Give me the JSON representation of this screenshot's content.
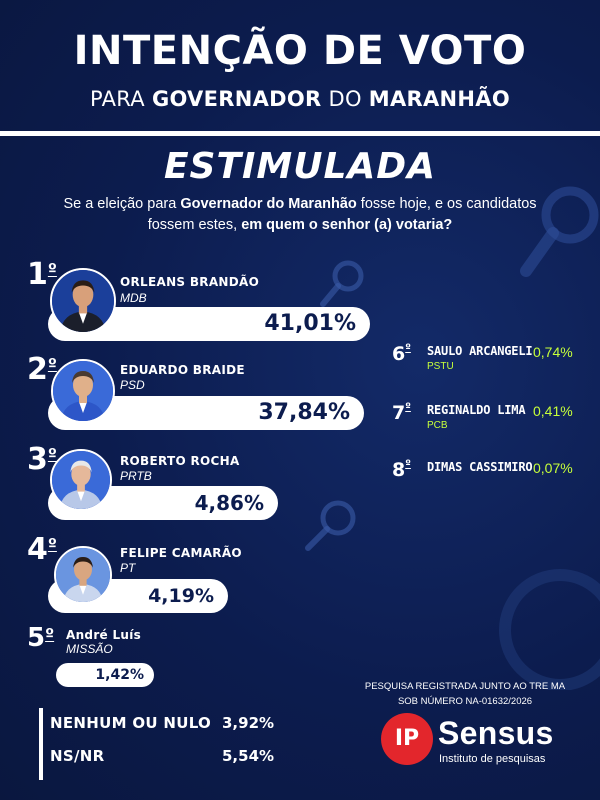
{
  "header": {
    "title": "INTENÇÃO DE VOTO",
    "subtitle_pre": "PARA ",
    "subtitle_bold1": "GOVERNADOR",
    "subtitle_mid": " DO ",
    "subtitle_bold2": "MARANHÃO"
  },
  "section": {
    "title": "ESTIMULADA",
    "question_1": "Se a eleição para ",
    "question_bold1": "Governador do Maranhão",
    "question_2": " fosse hoje, e os candidatos fossem estes, ",
    "question_bold2": "em quem o senhor (a) votaria?"
  },
  "chart_data": {
    "type": "bar",
    "title": "INTENÇÃO DE VOTO",
    "categories": [
      "ORLEANS BRANDÃO",
      "EDUARDO BRAIDE",
      "ROBERTO ROCHA",
      "FELIPE CAMARÃO",
      "André Luís",
      "SAULO ARCANGELI",
      "REGINALDO LIMA",
      "DIMAS CASSIMIRO",
      "NENHUM OU NULO",
      "NS/NR"
    ],
    "values": [
      41.01,
      37.84,
      4.86,
      4.19,
      1.42,
      0.74,
      0.41,
      0.07,
      3.92,
      5.54
    ],
    "unit": "%",
    "candidates": [
      {
        "rank": "1",
        "ord": "º",
        "name": "ORLEANS BRANDÃO",
        "party": "MDB",
        "value": 41.01,
        "label": "41,01%"
      },
      {
        "rank": "2",
        "ord": "º",
        "name": "EDUARDO BRAIDE",
        "party": "PSD",
        "value": 37.84,
        "label": "37,84%"
      },
      {
        "rank": "3",
        "ord": "º",
        "name": "ROBERTO ROCHA",
        "party": "PRTB",
        "value": 4.86,
        "label": "4,86%"
      },
      {
        "rank": "4",
        "ord": "º",
        "name": "FELIPE CAMARÃO",
        "party": "PT",
        "value": 4.19,
        "label": "4,19%"
      },
      {
        "rank": "5",
        "ord": "º",
        "name": "ANDRÉ LUÍS",
        "party": "MISSÃO",
        "value": 1.42,
        "label": "1,42%"
      }
    ],
    "minor_candidates": [
      {
        "rank": "6",
        "ord": "º",
        "name": "SAULO ARCANGELI",
        "party": "PSTU",
        "value": 0.74,
        "label": "0,74%"
      },
      {
        "rank": "7",
        "ord": "º",
        "name": "REGINALDO LIMA",
        "party": "PCB",
        "value": 0.41,
        "label": "0,41%"
      },
      {
        "rank": "8",
        "ord": "º",
        "name": "DIMAS CASSIMIRO",
        "party": "",
        "value": 0.07,
        "label": "0,07%"
      }
    ],
    "others": [
      {
        "label": "NENHUM OU NULO",
        "value": 3.92,
        "value_label": "3,92%"
      },
      {
        "label": "NS/NR",
        "value": 5.54,
        "value_label": "5,54%"
      }
    ]
  },
  "registry": {
    "line1": "PESQUISA REGISTRADA JUNTO AO TRE MA",
    "line2": "SOB NÚMERO NA-01632/2026"
  },
  "logo": {
    "badge": "IP",
    "name": "Sensus",
    "tagline": "Instituto de pesquisas"
  },
  "colors": {
    "background": "#0c1c4e",
    "bar": "#ffffff",
    "bar_text": "#0c1c4e",
    "accent_green": "#c6ff3a",
    "logo_red": "#e3262c"
  },
  "icons": [
    "magnifier-icon",
    "person-photo-icon"
  ]
}
